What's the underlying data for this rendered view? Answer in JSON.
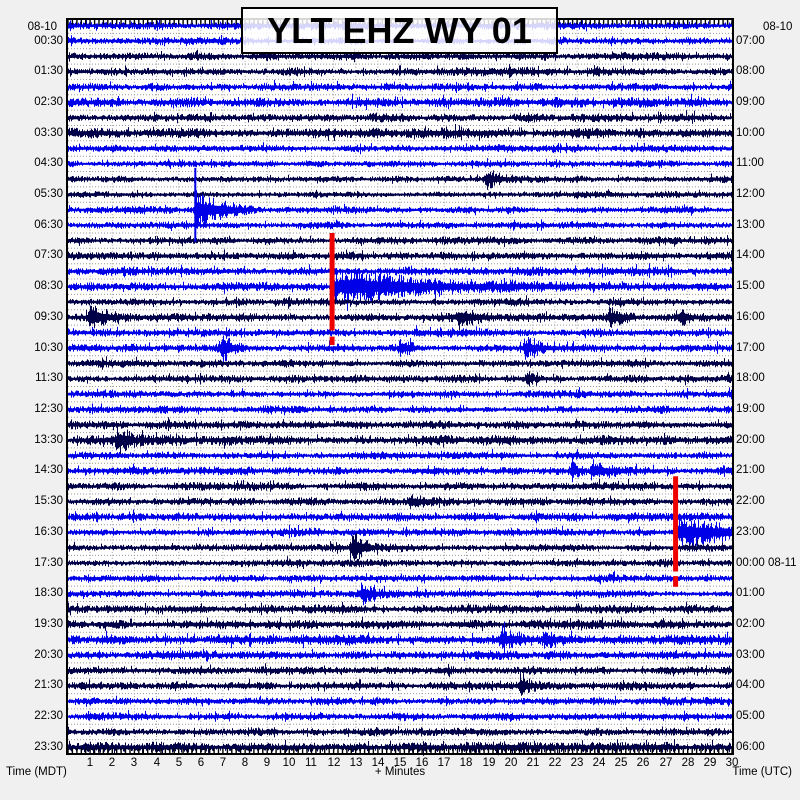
{
  "title": "YLT EHZ WY 01",
  "dates": {
    "top_left": "08-10",
    "top_right": "08-10"
  },
  "axis": {
    "bottom_left": "Time (MDT)",
    "bottom_center": "+ Minutes",
    "bottom_right": "Time (UTC)",
    "minute_labels": [
      "1",
      "2",
      "3",
      "4",
      "5",
      "6",
      "7",
      "8",
      "9",
      "10",
      "11",
      "12",
      "13",
      "14",
      "15",
      "16",
      "17",
      "18",
      "19",
      "20",
      "21",
      "22",
      "23",
      "24",
      "25",
      "26",
      "27",
      "28",
      "29",
      "30"
    ]
  },
  "left_time_labels": [
    "00:30",
    "01:30",
    "02:30",
    "03:30",
    "04:30",
    "05:30",
    "06:30",
    "07:30",
    "08:30",
    "09:30",
    "10:30",
    "11:30",
    "12:30",
    "13:30",
    "14:30",
    "15:30",
    "16:30",
    "17:30",
    "18:30",
    "19:30",
    "20:30",
    "21:30",
    "22:30",
    "23:30"
  ],
  "right_time_labels": [
    "07:00",
    "08:00",
    "09:00",
    "10:00",
    "11:00",
    "12:00",
    "13:00",
    "14:00",
    "15:00",
    "16:00",
    "17:00",
    "18:00",
    "19:00",
    "20:00",
    "21:00",
    "22:00",
    "23:00",
    "00:00 08-11",
    "01:00",
    "02:00",
    "03:00",
    "04:00",
    "05:00",
    "06:00"
  ],
  "colors": {
    "trace_blue": "#0000e8",
    "trace_navy": "#000048",
    "clip_red": "#ee0000",
    "grid": "#999999",
    "frame": "#000000",
    "plot_bg": "#ffffff",
    "page_bg": "#f0f0f0",
    "text": "#000000"
  },
  "chart_data": {
    "type": "helicorder",
    "station": "YLT EHZ WY 01",
    "date_local": "08-10",
    "timezone_left": "MDT",
    "timezone_right": "UTC",
    "minutes_per_line": 30,
    "num_lines": 48,
    "x_range_minutes": [
      0,
      30
    ],
    "grid": "dotted line between each 30-minute trace with minute ticks",
    "legend_position": "none",
    "row_colors": [
      "blue",
      "blue",
      "navy",
      "navy",
      "blue",
      "blue",
      "navy",
      "navy",
      "blue",
      "blue",
      "navy",
      "navy",
      "blue",
      "blue",
      "navy",
      "navy",
      "blue",
      "blue",
      "navy",
      "navy",
      "blue",
      "blue",
      "navy",
      "navy",
      "blue",
      "blue",
      "navy",
      "navy",
      "blue",
      "blue",
      "navy",
      "navy",
      "blue",
      "blue",
      "navy",
      "navy",
      "blue",
      "blue",
      "navy",
      "navy",
      "blue",
      "blue",
      "navy",
      "navy",
      "blue",
      "blue",
      "navy",
      "navy"
    ],
    "row_amps": [
      3.6,
      3.4,
      3.6,
      3.8,
      3.4,
      4.6,
      3.6,
      4.4,
      3.2,
      3.0,
      3.0,
      3.0,
      3.2,
      3.4,
      3.4,
      3.6,
      4.0,
      3.8,
      3.6,
      3.8,
      3.6,
      3.6,
      3.4,
      3.4,
      3.4,
      3.4,
      3.6,
      4.4,
      3.4,
      3.6,
      3.6,
      3.6,
      3.8,
      3.6,
      3.4,
      3.4,
      3.4,
      3.2,
      3.8,
      4.2,
      4.8,
      4.0,
      3.6,
      3.6,
      3.6,
      3.4,
      3.4,
      4.6
    ],
    "events": [
      {
        "row": 10,
        "minute": 18.9,
        "amp": 9,
        "coda": 0.5
      },
      {
        "row": 12,
        "minute": 5.75,
        "amp": 22,
        "coda": 0.9,
        "spike_up": 42,
        "spike_down": 32
      },
      {
        "row": 17,
        "minute": 11.93,
        "amp": 16,
        "coda": 3.8,
        "clipped": true,
        "red_segments": [
          [
            14.0,
            20.35
          ],
          [
            20.75,
            21.3
          ]
        ]
      },
      {
        "row": 19,
        "minute": 0.95,
        "amp": 12,
        "coda": 0.6
      },
      {
        "row": 19,
        "minute": 17.6,
        "amp": 7,
        "coda": 0.8
      },
      {
        "row": 19,
        "minute": 24.4,
        "amp": 7,
        "coda": 0.6
      },
      {
        "row": 19,
        "minute": 27.6,
        "amp": 6,
        "coda": 0.5
      },
      {
        "row": 21,
        "minute": 6.9,
        "amp": 10,
        "coda": 0.7
      },
      {
        "row": 21,
        "minute": 15.0,
        "amp": 6,
        "coda": 0.6
      },
      {
        "row": 21,
        "minute": 20.6,
        "amp": 9,
        "coda": 0.6
      },
      {
        "row": 23,
        "minute": 20.7,
        "amp": 7,
        "coda": 0.5
      },
      {
        "row": 27,
        "minute": 2.2,
        "amp": 10,
        "coda": 1.3
      },
      {
        "row": 29,
        "minute": 22.7,
        "amp": 10,
        "coda": 0.35
      },
      {
        "row": 29,
        "minute": 23.7,
        "amp": 11,
        "coda": 0.6
      },
      {
        "row": 31,
        "minute": 15.4,
        "amp": 7,
        "coda": 0.5
      },
      {
        "row": 33,
        "minute": 27.45,
        "amp": 16,
        "coda": 2.2,
        "clipped": true,
        "red_segments": [
          [
            29.85,
            36.05
          ],
          [
            36.35,
            37.05
          ]
        ]
      },
      {
        "row": 34,
        "minute": 12.8,
        "amp": 13,
        "coda": 0.6
      },
      {
        "row": 37,
        "minute": 13.2,
        "amp": 9,
        "coda": 0.4
      },
      {
        "row": 40,
        "minute": 19.5,
        "amp": 8,
        "coda": 0.5
      },
      {
        "row": 40,
        "minute": 21.5,
        "amp": 8,
        "coda": 0.5
      },
      {
        "row": 43,
        "minute": 20.4,
        "amp": 7,
        "coda": 0.4
      }
    ]
  }
}
